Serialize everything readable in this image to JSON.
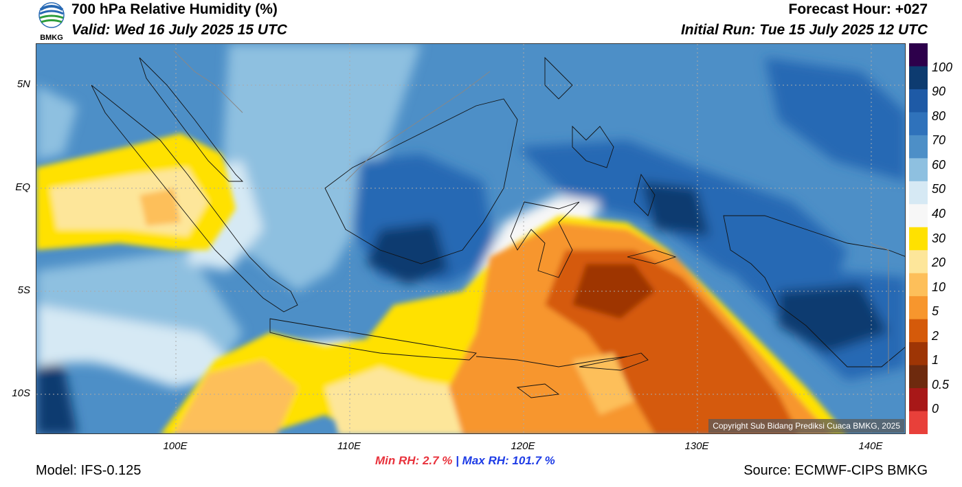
{
  "header": {
    "logo_text": "BMKG",
    "title": "700 hPa Relative Humidity (%)",
    "valid": "Valid: Wed 16 July 2025 15 UTC",
    "forecast_hour": "Forecast Hour: +027",
    "initial_run": "Initial Run: Tue 15 July 2025 12 UTC"
  },
  "map": {
    "lat_labels": [
      "5N",
      "EQ",
      "5S",
      "10S"
    ],
    "lon_labels": [
      "100E",
      "110E",
      "120E",
      "130E",
      "140E"
    ],
    "copyright": "Copyright Sub Bidang Prediksi Cuaca BMKG, 2025",
    "colors": {
      "very_humid": "#0d3b70",
      "humid": "#2869b4",
      "moist": "#4d8fc7",
      "mid": "#8ec0e0",
      "light": "#d6e9f4",
      "near_white": "#f7f7f7",
      "yellow": "#ffe100",
      "pale_yellow": "#fde69a",
      "light_orange": "#fdbf5a",
      "orange": "#f7962d",
      "dark_orange": "#d55a0a",
      "brown": "#9e3505"
    }
  },
  "colorbar": {
    "labels": [
      "100",
      "90",
      "80",
      "70",
      "60",
      "50",
      "40",
      "30",
      "20",
      "10",
      "5",
      "2",
      "1",
      "0.5",
      "0"
    ],
    "colors": [
      "#2d004b",
      "#0d3b70",
      "#1e5aa6",
      "#2f72bb",
      "#4d8fc7",
      "#8ec0e0",
      "#d6e9f4",
      "#f7f7f7",
      "#ffe100",
      "#fde69a",
      "#fdbf5a",
      "#f7962d",
      "#d55a0a",
      "#9e3505",
      "#6e2a0e",
      "#a81818",
      "#e8403a"
    ]
  },
  "stats": {
    "min_label": "Min RH:",
    "min_value": "2.7 %",
    "separator": "|",
    "max_label": "Max RH:",
    "max_value": "101.7 %"
  },
  "footer": {
    "model": "Model: IFS-0.125",
    "source": "Source: ECMWF-CIPS BMKG"
  }
}
